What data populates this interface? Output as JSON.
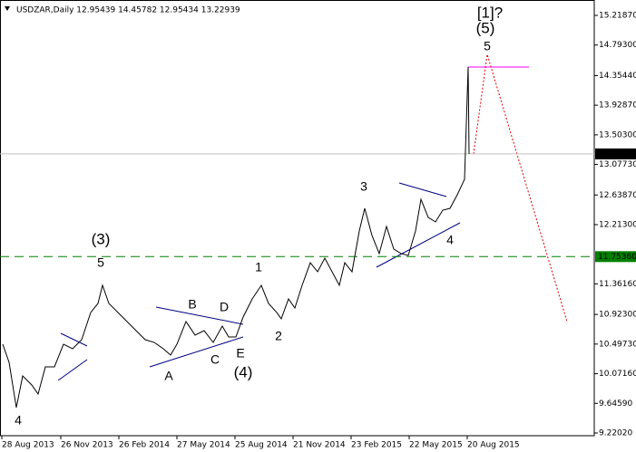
{
  "chart_data": {
    "type": "line",
    "title": "USDZAR,Daily  12.95439 14.45782 12.95434 13.22939",
    "x": [
      3,
      10,
      18,
      25,
      35,
      42,
      50,
      60,
      70,
      80,
      90,
      100,
      108,
      113,
      120,
      130,
      140,
      150,
      160,
      170,
      180,
      188,
      195,
      205,
      215,
      225,
      235,
      245,
      252,
      260,
      268,
      278,
      288,
      296,
      305,
      310,
      318,
      325,
      333,
      342,
      350,
      358,
      366,
      374,
      380,
      388,
      396,
      402,
      410,
      418,
      426,
      434,
      442,
      450,
      458,
      464,
      472,
      480,
      488,
      496,
      504,
      512,
      516,
      517
    ],
    "series": [
      {
        "name": "USDZAR",
        "color": "#000000",
        "values": [
          10.495,
          10.235,
          9.585,
          10.04,
          9.91,
          9.78,
          10.17,
          10.17,
          10.495,
          10.43,
          10.56,
          10.951,
          11.081,
          11.341,
          11.081,
          10.951,
          10.821,
          10.69,
          10.56,
          10.521,
          10.43,
          10.339,
          10.495,
          10.821,
          10.626,
          10.69,
          10.521,
          10.756,
          10.599,
          10.599,
          10.886,
          11.146,
          11.341,
          11.081,
          10.951,
          10.86,
          11.146,
          11.016,
          11.341,
          11.666,
          11.536,
          11.731,
          11.536,
          11.341,
          11.666,
          11.536,
          12.122,
          12.447,
          12.057,
          11.797,
          12.187,
          11.862,
          11.797,
          11.771,
          12.122,
          12.577,
          12.317,
          12.252,
          12.421,
          12.447,
          12.642,
          12.864,
          14.477,
          13.229
        ]
      }
    ],
    "xlim": [
      0,
      655
    ],
    "xticks": [
      {
        "value": 2,
        "label": "28 Aug 2013"
      },
      {
        "value": 67,
        "label": "26 Nov 2013"
      },
      {
        "value": 131,
        "label": "26 Feb 2014"
      },
      {
        "value": 195,
        "label": "27 May 2014"
      },
      {
        "value": 259,
        "label": "25 Aug 2014"
      },
      {
        "value": 323,
        "label": "21 Nov 2014"
      },
      {
        "value": 387,
        "label": "23 Feb 2015"
      },
      {
        "value": 451,
        "label": "22 May 2015"
      },
      {
        "value": 515,
        "label": "20 Aug 2015"
      }
    ],
    "ylim": [
      9.181,
      15.44
    ],
    "yticks": [
      {
        "value": 15.2187,
        "label": "15.21870"
      },
      {
        "value": 14.793,
        "label": "14.79300"
      },
      {
        "value": 14.3544,
        "label": "14.35440"
      },
      {
        "value": 13.9287,
        "label": "13.92870"
      },
      {
        "value": 13.503,
        "label": "13.50300"
      },
      {
        "value": 13.0773,
        "label": "13.07730"
      },
      {
        "value": 12.6387,
        "label": "12.63870"
      },
      {
        "value": 12.213,
        "label": "12.21300"
      },
      {
        "value": 11.3616,
        "label": "11.36160"
      },
      {
        "value": 10.923,
        "label": "10.92300"
      },
      {
        "value": 10.4973,
        "label": "10.49730"
      },
      {
        "value": 10.0716,
        "label": "10.07160"
      },
      {
        "value": 9.6459,
        "label": "9.64590"
      },
      {
        "value": 9.2202,
        "label": "9.22020"
      }
    ],
    "level": {
      "value": 11.7536,
      "label": "11.75360",
      "color": "#008000"
    },
    "current_price": {
      "value": 13.22939,
      "label": "13.22939",
      "color": "#c0c0c0"
    },
    "annotations": [
      "4",
      "(3)",
      "5",
      "A",
      "B",
      "C",
      "D",
      "E",
      "(4)",
      "1",
      "2",
      "3",
      "4",
      "5",
      "(5)",
      "[1]?"
    ]
  }
}
